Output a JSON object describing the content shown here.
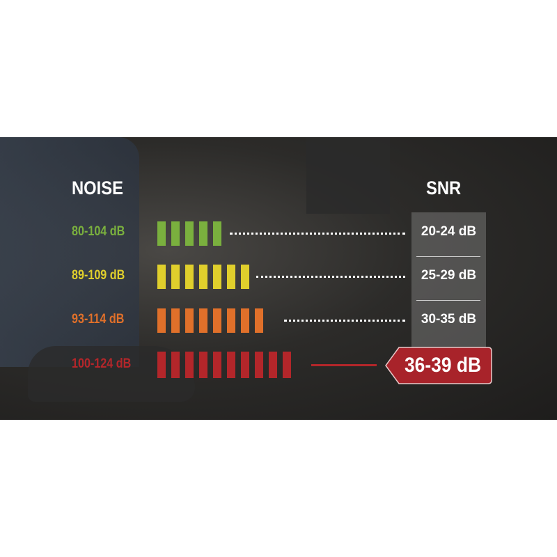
{
  "headers": {
    "noise": "NOISE",
    "snr": "SNR"
  },
  "rows": [
    {
      "noise": "80-104 dB",
      "snr": "20-24 dB",
      "bars": 5,
      "color": "#7ab03e"
    },
    {
      "noise": "89-109 dB",
      "snr": "25-29 dB",
      "bars": 7,
      "color": "#e0cf2c"
    },
    {
      "noise": "93-114 dB",
      "snr": "30-35 dB",
      "bars": 8,
      "color": "#e0702a"
    },
    {
      "noise": "100-124 dB",
      "snr": "36-39 dB",
      "bars": 10,
      "color": "#b3262a",
      "highlighted": true
    }
  ]
}
